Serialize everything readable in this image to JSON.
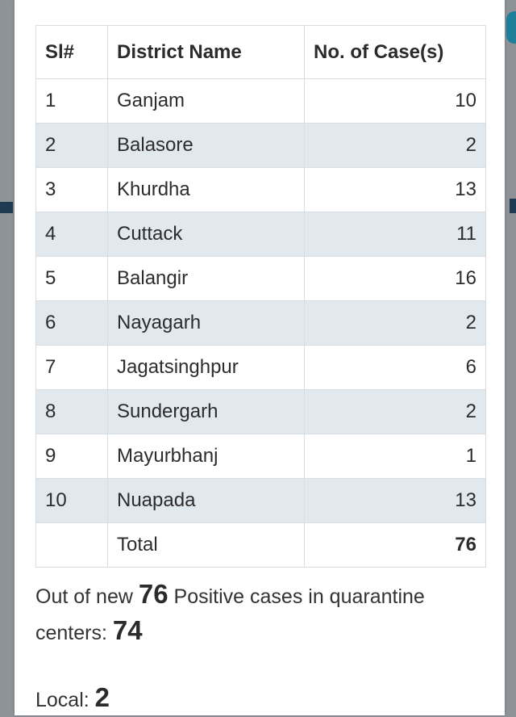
{
  "table": {
    "headers": {
      "sl": "Sl#",
      "district": "District Name",
      "cases": "No. of Case(s)"
    },
    "rows": [
      {
        "sl": "1",
        "district": "Ganjam",
        "cases": "10"
      },
      {
        "sl": "2",
        "district": "Balasore",
        "cases": "2"
      },
      {
        "sl": "3",
        "district": "Khurdha",
        "cases": "13"
      },
      {
        "sl": "4",
        "district": "Cuttack",
        "cases": "11"
      },
      {
        "sl": "5",
        "district": "Balangir",
        "cases": "16"
      },
      {
        "sl": "6",
        "district": "Nayagarh",
        "cases": "2"
      },
      {
        "sl": "7",
        "district": "Jagatsinghpur",
        "cases": "6"
      },
      {
        "sl": "8",
        "district": "Sundergarh",
        "cases": "2"
      },
      {
        "sl": "9",
        "district": "Mayurbhanj",
        "cases": "1"
      },
      {
        "sl": "10",
        "district": "Nuapada",
        "cases": "13"
      }
    ],
    "total": {
      "label": "Total",
      "value": "76"
    }
  },
  "summary": {
    "prefix": "Out of new",
    "new_count": "76",
    "middle": "Positive cases in quarantine centers:",
    "quarantine_count": "74"
  },
  "local": {
    "label": "Local:",
    "count": "2"
  },
  "colors": {
    "row_alt": "#e1e8ee",
    "border": "#d9dde2",
    "text": "#2c2c2c"
  }
}
